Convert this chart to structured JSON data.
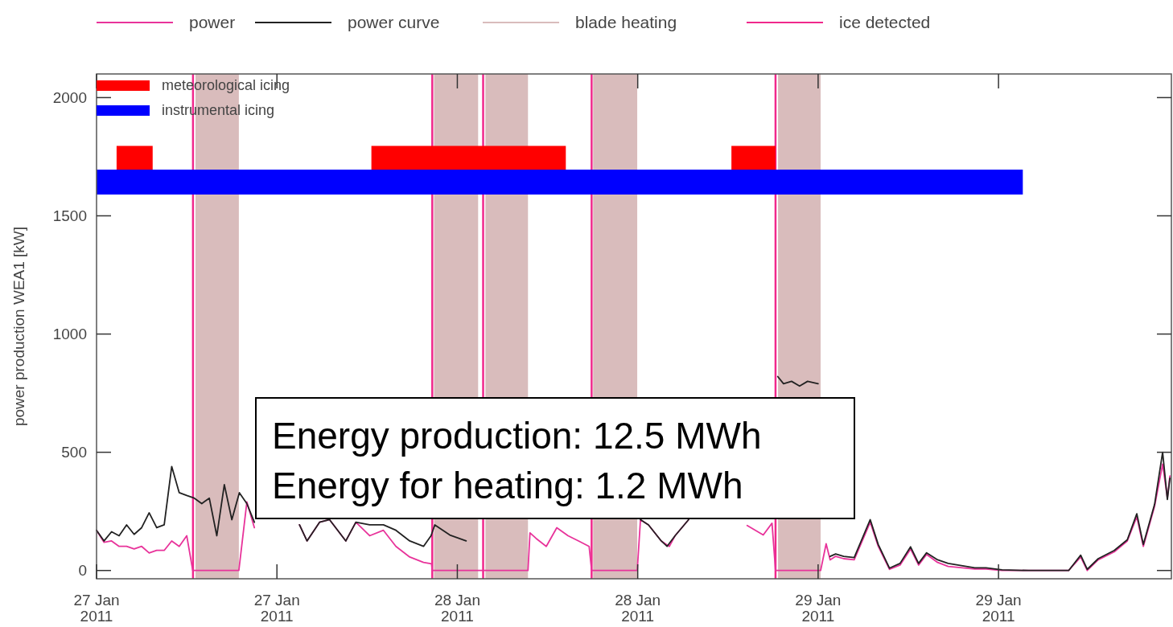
{
  "chart_data": {
    "type": "line",
    "ylabel": "power production WEA1 [kW]",
    "legend": "top",
    "grid": false,
    "xlim": [
      "2011-01-27T00:00",
      "2011-01-29T23:30"
    ],
    "xticks": [
      {
        "value": "2011-01-27T00:00",
        "label": "27 Jan\n2011"
      },
      {
        "value": "2011-01-27T12:00",
        "label": "27 Jan\n2011"
      },
      {
        "value": "2011-01-28T00:00",
        "label": "28 Jan\n2011"
      },
      {
        "value": "2011-01-28T12:00",
        "label": "28 Jan\n2011"
      },
      {
        "value": "2011-01-29T00:00",
        "label": "29 Jan\n2011"
      },
      {
        "value": "2011-01-29T12:00",
        "label": "29 Jan\n2011"
      }
    ],
    "ylim": [
      -35,
      2100
    ],
    "yticks": [
      0,
      500,
      1000,
      1500,
      2000
    ],
    "series": [
      {
        "name": "power",
        "color": "#e8339a",
        "x": [
          "2011-01-27T00:00",
          "2011-01-27T00:30",
          "2011-01-27T01:00",
          "2011-01-27T01:30",
          "2011-01-27T02:00",
          "2011-01-27T02:30",
          "2011-01-27T03:00",
          "2011-01-27T03:30",
          "2011-01-27T04:00",
          "2011-01-27T04:30",
          "2011-01-27T05:00",
          "2011-01-27T05:30",
          "2011-01-27T06:00",
          "2011-01-27T06:24",
          "2011-01-27T07:00",
          "2011-01-27T09:28",
          "2011-01-27T10:00",
          "2011-01-27T10:30",
          "2011-01-27T11:00",
          "2011-01-27T13:30",
          "2011-01-27T14:00",
          "2011-01-27T14:50",
          "2011-01-27T15:30",
          "2011-01-27T16:35",
          "2011-01-27T17:15",
          "2011-01-27T18:10",
          "2011-01-27T19:05",
          "2011-01-27T19:55",
          "2011-01-27T20:50",
          "2011-01-27T21:45",
          "2011-01-27T22:17",
          "2011-01-27T22:20",
          "2011-01-28T04:42",
          "2011-01-28T04:50",
          "2011-01-28T05:14",
          "2011-01-28T05:55",
          "2011-01-28T06:37",
          "2011-01-28T07:22",
          "2011-01-28T08:04",
          "2011-01-28T08:46",
          "2011-01-28T08:56",
          "2011-01-28T11:58",
          "2011-01-28T12:11",
          "2011-01-28T12:43",
          "2011-01-28T13:34",
          "2011-01-28T14:06",
          "2011-01-28T14:29",
          "2011-01-28T15:23",
          "2011-01-28T16:00",
          "2011-01-28T19:17",
          "2011-01-28T20:21",
          "2011-01-28T20:56",
          "2011-01-28T21:10",
          "2011-01-29T00:10",
          "2011-01-29T00:32",
          "2011-01-29T00:48",
          "2011-01-29T01:10",
          "2011-01-29T01:42",
          "2011-01-29T02:24",
          "2011-01-29T03:28",
          "2011-01-29T04:00",
          "2011-01-29T04:45",
          "2011-01-29T05:27",
          "2011-01-29T06:09",
          "2011-01-29T06:41",
          "2011-01-29T07:13",
          "2011-01-29T07:57",
          "2011-01-29T08:39",
          "2011-01-29T10:25",
          "2011-01-29T11:10",
          "2011-01-29T12:14",
          "2011-01-29T14:00",
          "2011-01-29T16:40",
          "2011-01-29T17:28",
          "2011-01-29T17:54",
          "2011-01-29T18:38",
          "2011-01-29T19:42",
          "2011-01-29T20:34",
          "2011-01-29T21:12",
          "2011-01-29T21:38",
          "2011-01-29T22:23",
          "2011-01-29T22:55",
          "2011-01-29T23:14",
          "2011-01-29T23:24"
        ],
        "values": [
          170,
          119,
          125,
          102,
          102,
          91,
          102,
          74,
          85,
          85,
          125,
          102,
          147,
          0,
          0,
          0,
          290,
          181,
          null,
          193,
          125,
          204,
          215,
          125,
          204,
          147,
          170,
          102,
          57,
          34,
          28,
          0,
          0,
          159,
          136,
          102,
          181,
          147,
          125,
          102,
          0,
          0,
          215,
          193,
          125,
          102,
          147,
          215,
          null,
          190,
          150,
          200,
          0,
          0,
          113,
          45,
          60,
          50,
          45,
          204,
          102,
          5,
          23,
          91,
          23,
          68,
          34,
          17,
          6,
          6,
          0,
          0,
          0,
          57,
          0,
          45,
          79,
          125,
          227,
          102,
          272,
          450,
          306,
          400
        ]
      },
      {
        "name": "power curve",
        "color": "#222222",
        "x": [
          "2011-01-27T00:00",
          "2011-01-27T00:30",
          "2011-01-27T01:00",
          "2011-01-27T01:30",
          "2011-01-27T02:00",
          "2011-01-27T02:30",
          "2011-01-27T03:00",
          "2011-01-27T03:30",
          "2011-01-27T04:00",
          "2011-01-27T04:30",
          "2011-01-27T05:00",
          "2011-01-27T05:30",
          "2011-01-27T06:00",
          "2011-01-27T06:30",
          "2011-01-27T07:00",
          "2011-01-27T07:30",
          "2011-01-27T08:00",
          "2011-01-27T08:30",
          "2011-01-27T09:00",
          "2011-01-27T09:30",
          "2011-01-27T10:00",
          "2011-01-27T10:30",
          "2011-01-27T11:00",
          "2011-01-27T13:30",
          "2011-01-27T14:00",
          "2011-01-27T14:50",
          "2011-01-27T15:30",
          "2011-01-27T16:35",
          "2011-01-27T17:15",
          "2011-01-27T18:10",
          "2011-01-27T19:05",
          "2011-01-27T19:55",
          "2011-01-27T20:50",
          "2011-01-27T21:45",
          "2011-01-27T22:15",
          "2011-01-27T22:30",
          "2011-01-27T23:30",
          "2011-01-28T00:35",
          "2011-01-28T01:30",
          "2011-01-28T12:11",
          "2011-01-28T12:43",
          "2011-01-28T13:34",
          "2011-01-28T13:57",
          "2011-01-28T14:29",
          "2011-01-28T15:23",
          "2011-01-28T16:00",
          "2011-01-28T21:19",
          "2011-01-28T21:42",
          "2011-01-28T22:14",
          "2011-01-28T22:46",
          "2011-01-28T23:18",
          "2011-01-29T00:00",
          "2011-01-29T00:20",
          "2011-01-29T00:48",
          "2011-01-29T01:10",
          "2011-01-29T01:42",
          "2011-01-29T02:24",
          "2011-01-29T03:28",
          "2011-01-29T04:00",
          "2011-01-29T04:45",
          "2011-01-29T05:27",
          "2011-01-29T06:09",
          "2011-01-29T06:41",
          "2011-01-29T07:13",
          "2011-01-29T07:57",
          "2011-01-29T08:39",
          "2011-01-29T10:25",
          "2011-01-29T11:10",
          "2011-01-29T12:14",
          "2011-01-29T14:00",
          "2011-01-29T16:40",
          "2011-01-29T17:28",
          "2011-01-29T17:54",
          "2011-01-29T18:38",
          "2011-01-29T19:42",
          "2011-01-29T20:34",
          "2011-01-29T21:12",
          "2011-01-29T21:38",
          "2011-01-29T22:23",
          "2011-01-29T22:55",
          "2011-01-29T23:14",
          "2011-01-29T23:24"
        ],
        "values": [
          170,
          125,
          164,
          147,
          193,
          153,
          181,
          244,
          181,
          193,
          440,
          329,
          317,
          306,
          283,
          306,
          147,
          363,
          215,
          329,
          283,
          204,
          null,
          193,
          125,
          204,
          215,
          125,
          204,
          193,
          193,
          170,
          125,
          102,
          147,
          193,
          150,
          125,
          null,
          215,
          193,
          125,
          102,
          147,
          215,
          null,
          820,
          790,
          800,
          780,
          800,
          790,
          null,
          60,
          70,
          60,
          55,
          215,
          110,
          10,
          30,
          100,
          30,
          75,
          45,
          30,
          11,
          11,
          3,
          0,
          0,
          65,
          5,
          50,
          85,
          130,
          240,
          110,
          280,
          500,
          300,
          390
        ]
      },
      {
        "name": "meteorological icing",
        "color": "#ff0000",
        "x": [
          "2011-01-27T01:20",
          "2011-01-27T03:44",
          "2011-01-27T11:00",
          "2011-01-27T18:17",
          "2011-01-28T07:13",
          "2011-01-28T12:00",
          "2011-01-28T18:14",
          "2011-01-28T21:10"
        ],
        "values": [
          1743,
          1743,
          null,
          1743,
          1743,
          null,
          1743,
          1743
        ]
      },
      {
        "name": "instrumental icing",
        "color": "#0000ff",
        "x": [
          "2011-01-27T00:00",
          "2011-01-29T13:37"
        ],
        "values": [
          1643,
          1643
        ]
      }
    ],
    "bands": [
      {
        "axis": "x",
        "from": "2011-01-27T06:35",
        "to": "2011-01-27T09:28",
        "label": "blade heating",
        "color": "#d9bcbc"
      },
      {
        "axis": "x",
        "from": "2011-01-27T22:27",
        "to": "2011-01-28T01:23",
        "color": "#d9bcbc"
      },
      {
        "axis": "x",
        "from": "2011-01-28T01:52",
        "to": "2011-01-28T04:42",
        "color": "#d9bcbc"
      },
      {
        "axis": "x",
        "from": "2011-01-28T09:02",
        "to": "2011-01-28T11:58",
        "color": "#d9bcbc"
      },
      {
        "axis": "x",
        "from": "2011-01-28T21:20",
        "to": "2011-01-29T00:10",
        "color": "#d9bcbc"
      }
    ],
    "ref_lines": [
      {
        "axis": "x",
        "value": "2011-01-27T06:25",
        "label": "ice detected",
        "color": "#f0288c"
      },
      {
        "axis": "x",
        "value": "2011-01-27T22:20",
        "color": "#f0288c"
      },
      {
        "axis": "x",
        "value": "2011-01-28T01:43",
        "color": "#f0288c"
      },
      {
        "axis": "x",
        "value": "2011-01-28T08:56",
        "color": "#f0288c"
      },
      {
        "axis": "x",
        "value": "2011-01-28T21:10",
        "color": "#f0288c"
      }
    ],
    "annotations": [
      "Energy production: 12.5 MWh",
      "Energy for heating: 1.2 MWh"
    ]
  }
}
